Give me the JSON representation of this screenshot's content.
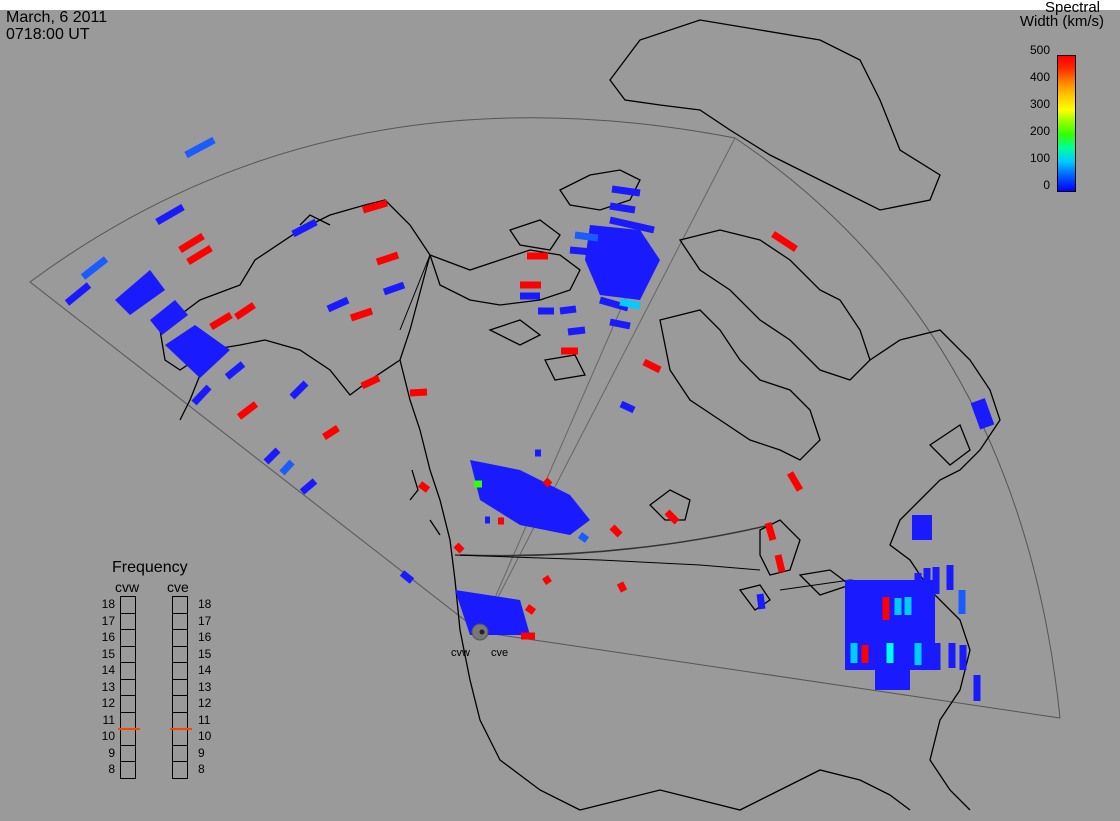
{
  "header": {
    "date": "March, 6 2011",
    "time": "0718:00 UT"
  },
  "colorbar": {
    "title_line1": "Spectral",
    "title_line2": "Width (km/s)",
    "ticks": [
      "500",
      "400",
      "300",
      "200",
      "100",
      "0"
    ]
  },
  "frequency": {
    "title": "Frequency",
    "radars": [
      {
        "name": "cvw",
        "selected_mhz": 10.5
      },
      {
        "name": "cve",
        "selected_mhz": 10.5
      }
    ],
    "scale": [
      "18",
      "17",
      "16",
      "15",
      "14",
      "13",
      "12",
      "11",
      "10",
      "9",
      "8"
    ]
  },
  "sites": {
    "west": "cvw",
    "east": "cve"
  },
  "colors": {
    "background": "#9a9a9a",
    "low": "#1a1aff",
    "high": "#ff0000",
    "mid": "#00ccff",
    "coast": "#000000"
  }
}
